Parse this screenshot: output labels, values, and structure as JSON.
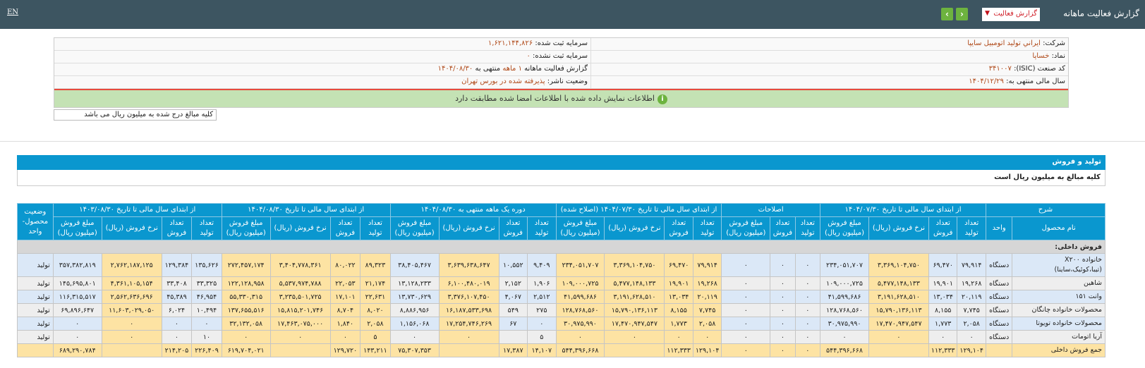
{
  "topbar": {
    "lang": "EN",
    "title": "گزارش فعالیت ماهانه",
    "dropdown": "گزارش فعالیت",
    "prev": "‹",
    "next": "›"
  },
  "info": {
    "company_label": "شرکت:",
    "company": "ايراني توليد اتومبيل سايپا",
    "capital_label": "سرمایه ثبت شده:",
    "capital": "۱,۶۲۱,۱۴۴,۸۲۶",
    "symbol_label": "نماد:",
    "symbol": "خساپا",
    "unreg_label": "سرمایه ثبت نشده:",
    "unreg": "۰",
    "isic_label": "کد صنعت (ISIC):",
    "isic": "۳۴۱۰۰۷",
    "report_label": "گزارش فعالیت ماهانه",
    "report_period": "۱ ماهه",
    "report_suffix": "منتهی به",
    "report_date": "۱۴۰۴/۰۸/۳۰",
    "fy_label": "سال مالی منتهی به:",
    "fy": "۱۴۰۴/۱۲/۲۹",
    "status_label": "وضعیت ناشر:",
    "status": "پذیرفته شده در بورس تهران",
    "verified": "اطلاعات نمایش داده شده با اطلاعات امضا شده مطابقت دارد"
  },
  "note": "کلیه مبالغ درج شده به میلیون ریال می باشد",
  "section": {
    "title": "تولید و فروش",
    "subtitle": "کلیه مبالغ به میلیون ریال است"
  },
  "table": {
    "groups": [
      "شرح",
      "از ابتدای سال مالی تا تاریخ ۱۴۰۴/۰۷/۳۰",
      "اصلاحات",
      "از ابتدای سال مالی تا تاریخ ۱۴۰۴/۰۷/۳۰ (اصلاح شده)",
      "دوره یک ماهه منتهی به ۱۴۰۴/۰۸/۳۰",
      "از ابتدای سال مالی تا تاریخ ۱۴۰۴/۰۸/۳۰",
      "از ابتدای سال مالی تا تاریخ ۱۴۰۳/۰۸/۳۰",
      "وضعیت محصول-واحد"
    ],
    "subheaders": [
      "نام محصول",
      "واحد",
      "تعداد تولید",
      "تعداد فروش",
      "نرخ فروش (ریال)",
      "مبلغ فروش (میلیون ریال)",
      "تعداد تولید",
      "تعداد فروش",
      "مبلغ فروش (میلیون ریال)",
      "تعداد تولید",
      "تعداد فروش",
      "نرخ فروش (ریال)",
      "مبلغ فروش (میلیون ریال)",
      "تعداد تولید",
      "تعداد فروش",
      "نرخ فروش (ریال)",
      "مبلغ فروش (میلیون ریال)",
      "تعداد تولید",
      "تعداد فروش",
      "نرخ فروش (ریال)",
      "مبلغ فروش (میلیون ریال)",
      "تعداد تولید",
      "تعداد فروش",
      "نرخ فروش (ریال)",
      "مبلغ فروش (میلیون ریال)"
    ],
    "section_row": "فروش داخلی:",
    "rows": [
      [
        "خانواده X۲۰۰ (تیبا،کوئیک،ساینا)",
        "دستگاه",
        "۷۹,۹۱۴",
        "۶۹,۴۷۰",
        "۳,۳۶۹,۱۰۴,۷۵۰",
        "۲۳۴,۰۵۱,۷۰۷",
        "۰",
        "۰",
        "۰",
        "۷۹,۹۱۴",
        "۶۹,۴۷۰",
        "۳,۳۶۹,۱۰۴,۷۵۰",
        "۲۳۴,۰۵۱,۷۰۷",
        "۹,۴۰۹",
        "۱۰,۵۵۲",
        "۳,۶۳۹,۶۳۸,۶۴۷",
        "۳۸,۴۰۵,۴۶۷",
        "۸۹,۳۲۳",
        "۸۰,۰۲۲",
        "۳,۴۰۴,۷۷۸,۳۶۱",
        "۲۷۲,۴۵۷,۱۷۴",
        "۱۳۵,۶۲۶",
        "۱۲۹,۳۸۴",
        "۲,۷۶۲,۱۸۷,۱۲۵",
        "۳۵۷,۳۸۲,۸۱۹",
        "تولید"
      ],
      [
        "شاهین",
        "دستگاه",
        "۱۹,۲۶۸",
        "۱۹,۹۰۱",
        "۵,۴۷۷,۱۴۸,۱۳۳",
        "۱۰۹,۰۰۰,۷۲۵",
        "۰",
        "۰",
        "۰",
        "۱۹,۲۶۸",
        "۱۹,۹۰۱",
        "۵,۴۷۷,۱۴۸,۱۳۳",
        "۱۰۹,۰۰۰,۷۲۵",
        "۱,۹۰۶",
        "۲,۱۵۲",
        "۶,۱۰۰,۴۸۰,۰۱۹",
        "۱۳,۱۲۸,۲۳۳",
        "۲۱,۱۷۴",
        "۲۲,۰۵۳",
        "۵,۵۳۷,۹۷۴,۷۸۸",
        "۱۲۲,۱۲۸,۹۵۸",
        "۳۳,۳۲۵",
        "۳۳,۴۰۸",
        "۴,۳۶۱,۱۰۵,۱۵۴",
        "۱۴۵,۶۹۵,۸۰۱",
        "تولید"
      ],
      [
        "وانت ۱۵۱",
        "دستگاه",
        "۲۰,۱۱۹",
        "۱۳,۰۳۴",
        "۳,۱۹۱,۶۲۸,۵۱۰",
        "۴۱,۵۹۹,۶۸۶",
        "۰",
        "۰",
        "۰",
        "۲۰,۱۱۹",
        "۱۳,۰۳۴",
        "۳,۱۹۱,۶۲۸,۵۱۰",
        "۴۱,۵۹۹,۶۸۶",
        "۲,۵۱۲",
        "۴,۰۶۷",
        "۳,۳۷۶,۱۰۷,۴۵۰",
        "۱۳,۷۳۰,۶۲۹",
        "۲۲,۶۳۱",
        "۱۷,۱۰۱",
        "۳,۲۳۵,۵۰۱,۷۲۵",
        "۵۵,۳۳۰,۳۱۵",
        "۴۶,۹۵۴",
        "۴۵,۳۸۹",
        "۲,۵۶۲,۶۳۶,۶۹۶",
        "۱۱۶,۳۱۵,۵۱۷",
        "تولید"
      ],
      [
        "محصولات خانواده چانگان",
        "دستگاه",
        "۷,۷۴۵",
        "۸,۱۵۵",
        "۱۵,۷۹۰,۱۳۶,۱۱۳",
        "۱۲۸,۷۶۸,۵۶۰",
        "۰",
        "۰",
        "۰",
        "۷,۷۴۵",
        "۸,۱۵۵",
        "۱۵,۷۹۰,۱۳۶,۱۱۳",
        "۱۲۸,۷۶۸,۵۶۰",
        "۲۷۵",
        "۵۴۹",
        "۱۶,۱۸۷,۵۳۳,۶۹۸",
        "۸,۸۸۶,۹۵۶",
        "۸,۰۲۰",
        "۸,۷۰۴",
        "۱۵,۸۱۵,۲۰۱,۷۴۶",
        "۱۳۷,۶۵۵,۵۱۶",
        "۱۰,۴۹۴",
        "۶,۰۲۴",
        "۱۱,۶۰۳,۰۲۹,۰۵۰",
        "۶۹,۸۹۶,۶۴۷",
        "تولید"
      ],
      [
        "محصولات خانواده تویوتا",
        "دستگاه",
        "۲,۰۵۸",
        "۱,۷۷۳",
        "۱۷,۴۷۰,۹۴۷,۵۴۷",
        "۳۰,۹۷۵,۹۹۰",
        "۰",
        "۰",
        "۰",
        "۲,۰۵۸",
        "۱,۷۷۳",
        "۱۷,۴۷۰,۹۴۷,۵۴۷",
        "۳۰,۹۷۵,۹۹۰",
        "۰",
        "۶۷",
        "۱۷,۲۵۴,۷۴۶,۲۶۹",
        "۱,۱۵۶,۰۶۸",
        "۲,۰۵۸",
        "۱,۸۴۰",
        "۱۷,۴۶۳,۰۷۵,۰۰۰",
        "۳۲,۱۳۲,۰۵۸",
        "۰",
        "۰",
        "۰",
        "۰",
        "تولید"
      ],
      [
        "آریا اتومات",
        "دستگاه",
        "۰",
        "۰",
        "۰",
        "۰",
        "۰",
        "۰",
        "۰",
        "۰",
        "۰",
        "۰",
        "۰",
        "۵",
        "",
        "۰",
        "۰",
        "۵",
        "۰",
        "۰",
        "۰",
        "۱۰",
        "۰",
        "۰",
        "۰",
        "تولید"
      ]
    ],
    "total": [
      "جمع فروش داخلی",
      "",
      "۱۲۹,۱۰۴",
      "۱۱۲,۳۳۳",
      "",
      "۵۴۴,۳۹۶,۶۶۸",
      "۰",
      "۰",
      "۰",
      "۱۲۹,۱۰۴",
      "۱۱۲,۳۳۳",
      "",
      "۵۴۴,۳۹۶,۶۶۸",
      "۱۴,۱۰۷",
      "۱۷,۳۸۷",
      "",
      "۷۵,۳۰۷,۳۵۳",
      "۱۴۳,۲۱۱",
      "۱۲۹,۷۲۰",
      "",
      "۶۱۹,۷۰۴,۰۲۱",
      "۲۲۶,۴۰۹",
      "۲۱۴,۲۰۵",
      "",
      "۶۸۹,۲۹۰,۷۸۴",
      ""
    ]
  },
  "colors": {
    "topbar": "#3d5561",
    "header": "#0a97cf",
    "row_blue": "#dbe8f7",
    "row_gray": "#eeeeee",
    "highlight": "#fde3a3",
    "verified": "#c4e2b4",
    "value_text": "#b04a1a"
  }
}
